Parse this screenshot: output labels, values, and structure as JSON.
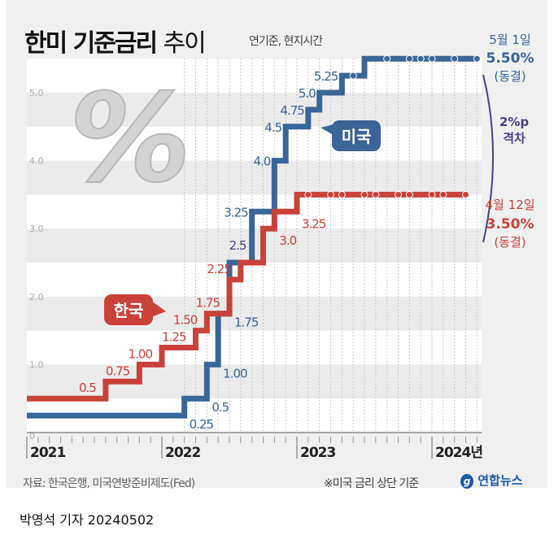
{
  "title_bold": "한미 기준금리",
  "title_light": "추이",
  "subtitle": "연기준, 현지시간",
  "source": "자료: 한국은행, 미국연방준비제도(Fed)",
  "note": "※미국 금리 상단 기준",
  "logo": "연합뉴스",
  "byline": "박영석 기자 20240502",
  "colors": {
    "us": "#3a6597",
    "korea": "#c9423a",
    "gap": "#4b3f87",
    "background": "#f0f0f0"
  },
  "chart_data": {
    "type": "line",
    "step": true,
    "yticks": [
      "0",
      "1.0",
      "2.0",
      "3.0",
      "4.0",
      "5.0"
    ],
    "ylim": [
      0,
      5.8
    ],
    "xticks": [
      "2021",
      "2022",
      "2023",
      "2024년"
    ],
    "xlim": [
      "2021-01",
      "2024-05"
    ],
    "series": [
      {
        "name": "미국",
        "color": "#3a6597",
        "points": [
          [
            "2021-01",
            0.25
          ],
          [
            "2022-03",
            0.5
          ],
          [
            "2022-05",
            1.0
          ],
          [
            "2022-06",
            1.75
          ],
          [
            "2022-07",
            2.5
          ],
          [
            "2022-09",
            3.25
          ],
          [
            "2022-11",
            4.0
          ],
          [
            "2022-12",
            4.5
          ],
          [
            "2023-02",
            4.75
          ],
          [
            "2023-03",
            5.0
          ],
          [
            "2023-05",
            5.25
          ],
          [
            "2023-07",
            5.5
          ],
          [
            "2024-05",
            5.5
          ]
        ],
        "labels": [
          "0.25",
          "0.5",
          "1.00",
          "1.75",
          "2.5",
          "3.25",
          "4.0",
          "4.5",
          "4.75",
          "5.0",
          "5.25"
        ],
        "hold_dates": [
          "2023-06",
          "2023-09",
          "2023-11",
          "2023-12",
          "2024-01",
          "2024-03",
          "2024-05"
        ]
      },
      {
        "name": "한국",
        "color": "#c9423a",
        "points": [
          [
            "2021-01",
            0.5
          ],
          [
            "2021-08",
            0.75
          ],
          [
            "2021-11",
            1.0
          ],
          [
            "2022-01",
            1.25
          ],
          [
            "2022-04",
            1.5
          ],
          [
            "2022-05",
            1.75
          ],
          [
            "2022-07",
            2.25
          ],
          [
            "2022-08",
            2.5
          ],
          [
            "2022-10",
            3.0
          ],
          [
            "2022-11",
            3.25
          ],
          [
            "2023-01",
            3.5
          ],
          [
            "2024-04",
            3.5
          ]
        ],
        "labels": [
          "0.5",
          "0.75",
          "1.00",
          "1.25",
          "1.50",
          "1.75",
          "2.25",
          "",
          "3.0",
          "3.25"
        ],
        "hold_dates": [
          "2023-02",
          "2023-04",
          "2023-05",
          "2023-07",
          "2023-08",
          "2023-10",
          "2023-11",
          "2024-01",
          "2024-02",
          "2024-04"
        ]
      }
    ],
    "annotations": {
      "us_end": {
        "date": "5월 1일",
        "rate": "5.50%",
        "status": "(동결)"
      },
      "korea_end": {
        "date": "4월 12일",
        "rate": "3.50%",
        "status": "(동결)"
      },
      "gap": {
        "value": "2%p",
        "label": "격차"
      },
      "shared_label": "2.5"
    }
  }
}
